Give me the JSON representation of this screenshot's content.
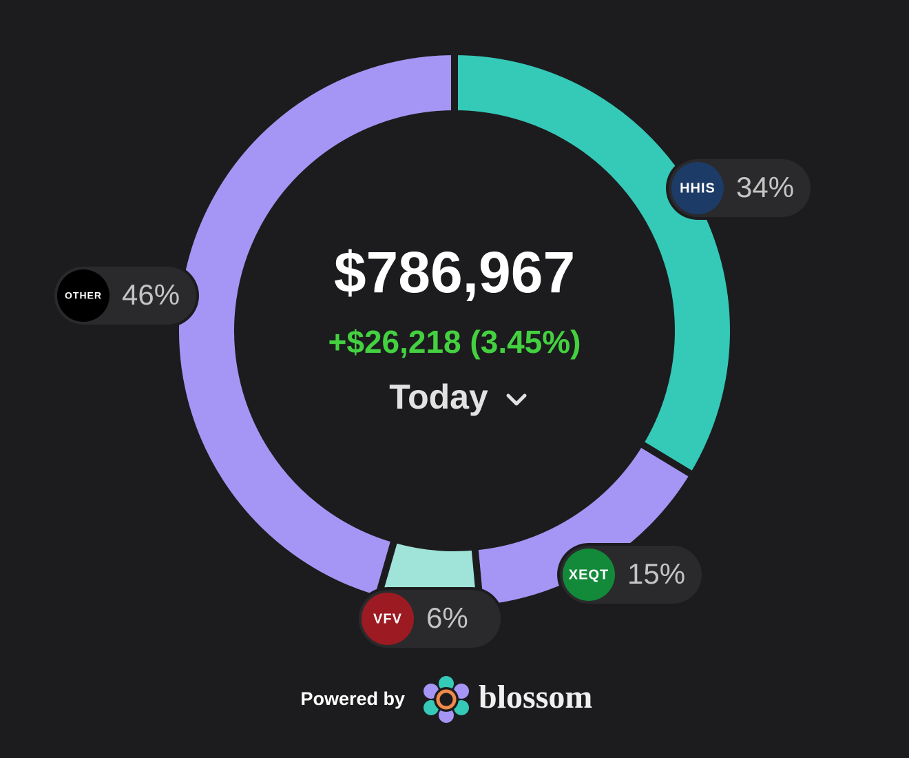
{
  "chart_data": {
    "type": "pie",
    "donut": true,
    "categories": [
      "HHIS",
      "XEQT",
      "VFV",
      "OTHER"
    ],
    "values": [
      34,
      15,
      6,
      46
    ],
    "value_labels": [
      "34%",
      "15%",
      "6%",
      "46%"
    ],
    "colors": [
      "#35c9b8",
      "#a596f5",
      "#a0e3d8",
      "#a596f5"
    ],
    "badge_colors": [
      "#1c3b66",
      "#128a3a",
      "#9c1b22",
      "#000000"
    ],
    "total": "$786,967",
    "change": "+$26,218 (3.45%)",
    "period": "Today",
    "footer": "Powered by",
    "brand": "blossom"
  }
}
